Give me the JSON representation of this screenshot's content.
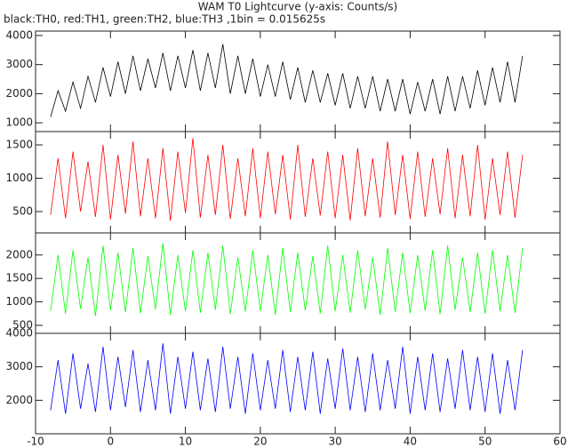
{
  "chart_data": {
    "type": "line",
    "title": "WAM T0 Lightcurve (y-axis: Counts/s)",
    "subtitle": "black:TH0, red:TH1, green:TH2, blue:TH3 ,1bin = 0.015625s",
    "x": [
      -8,
      -7,
      -6,
      -5,
      -4,
      -3,
      -2,
      -1,
      0,
      1,
      2,
      3,
      4,
      5,
      6,
      7,
      8,
      9,
      10,
      11,
      12,
      13,
      14,
      15,
      16,
      17,
      18,
      19,
      20,
      21,
      22,
      23,
      24,
      25,
      26,
      27,
      28,
      29,
      30,
      31,
      32,
      33,
      34,
      35,
      36,
      37,
      38,
      39,
      40,
      41,
      42,
      43,
      44,
      45,
      46,
      47,
      48,
      49,
      50,
      51,
      52,
      53,
      54,
      55
    ],
    "xlim": [
      -10,
      60
    ],
    "xticks": [
      -10,
      0,
      10,
      20,
      30,
      40,
      50,
      60
    ],
    "panels": [
      {
        "color": "#000000",
        "ylim": [
          700,
          4150
        ],
        "yticks": [
          1000,
          2000,
          3000,
          4000
        ],
        "values": [
          1200,
          2100,
          1400,
          2400,
          1500,
          2600,
          1700,
          2900,
          1900,
          3100,
          2000,
          3300,
          2100,
          3200,
          2200,
          3400,
          2100,
          3300,
          2200,
          3500,
          2100,
          3400,
          2200,
          3700,
          2000,
          3300,
          2000,
          3200,
          1900,
          3000,
          1900,
          3100,
          1800,
          2900,
          1700,
          2800,
          1700,
          2700,
          1600,
          2700,
          1500,
          2600,
          1500,
          2600,
          1400,
          2500,
          1400,
          2500,
          1300,
          2400,
          1400,
          2500,
          1300,
          2600,
          1400,
          2600,
          1500,
          2800,
          1600,
          2900,
          1700,
          3100,
          1700,
          3300
        ]
      },
      {
        "color": "#ff0000",
        "ylim": [
          180,
          1700
        ],
        "yticks": [
          500,
          1000,
          1500
        ],
        "values": [
          450,
          1300,
          400,
          1400,
          500,
          1250,
          420,
          1500,
          380,
          1350,
          470,
          1550,
          430,
          1300,
          400,
          1450,
          360,
          1400,
          480,
          1600,
          410,
          1350,
          450,
          1500,
          390,
          1300,
          430,
          1450,
          400,
          1400,
          460,
          1350,
          380,
          1500,
          420,
          1300,
          440,
          1400,
          400,
          1350,
          370,
          1450,
          430,
          1300,
          410,
          1550,
          450,
          1350,
          390,
          1400,
          420,
          1300,
          460,
          1450,
          400,
          1350,
          430,
          1500,
          380,
          1300,
          450,
          1400,
          410,
          1350
        ]
      },
      {
        "color": "#00ff00",
        "ylim": [
          330,
          2470
        ],
        "yticks": [
          500,
          1000,
          1500,
          2000
        ],
        "values": [
          800,
          2000,
          750,
          2100,
          850,
          1950,
          700,
          2200,
          820,
          2050,
          780,
          2150,
          760,
          1980,
          840,
          2250,
          720,
          2000,
          800,
          2100,
          770,
          2050,
          830,
          2200,
          740,
          1950,
          790,
          2100,
          810,
          2000,
          730,
          2150,
          780,
          2050,
          820,
          1980,
          750,
          2200,
          800,
          2000,
          770,
          2100,
          840,
          1950,
          720,
          2150,
          790,
          2050,
          760,
          2000,
          810,
          2100,
          740,
          2200,
          830,
          1950,
          780,
          2050,
          750,
          2100,
          800,
          2000,
          770,
          2150
        ]
      },
      {
        "color": "#0000ff",
        "ylim": [
          1000,
          4000
        ],
        "yticks": [
          2000,
          3000,
          4000
        ],
        "values": [
          1700,
          3200,
          1600,
          3400,
          1750,
          3100,
          1650,
          3600,
          1700,
          3300,
          1800,
          3500,
          1650,
          3200,
          1700,
          3700,
          1600,
          3300,
          1750,
          3450,
          1700,
          3250,
          1650,
          3600,
          1750,
          3300,
          1600,
          3400,
          1700,
          3200,
          1750,
          3500,
          1650,
          3300,
          1700,
          3450,
          1600,
          3250,
          1750,
          3550,
          1700,
          3300,
          1650,
          3400,
          1700,
          3200,
          1750,
          3600,
          1600,
          3300,
          1700,
          3400,
          1650,
          3250,
          1750,
          3500,
          1700,
          3300,
          1650,
          3400,
          1600,
          3200,
          1700,
          3500
        ]
      }
    ]
  }
}
